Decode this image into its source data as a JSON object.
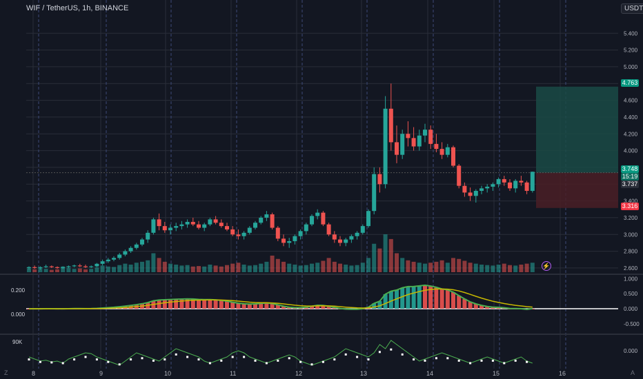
{
  "header": {
    "symbol_title": "WIF / TetherUS, 1h, BINANCE",
    "unit_button": "USDT"
  },
  "colors": {
    "up": "#26a69a",
    "down": "#ef5350",
    "grid": "#2a2e39",
    "bg": "#131722",
    "tp_zone": "#1a4a45",
    "sl_zone": "#4a1f26",
    "purple": "#b05cf1"
  },
  "price_axis": {
    "ticks": [
      "5.400",
      "5.200",
      "5.000",
      "4.800",
      "4.600",
      "4.400",
      "4.200",
      "4.000",
      "3.800",
      "3.600",
      "3.400",
      "3.200",
      "3.000",
      "2.800",
      "2.600"
    ]
  },
  "price_badges": {
    "target": "4.763",
    "current": "3.748",
    "countdown": "15:19",
    "entry": "3.737",
    "stop": "3.316"
  },
  "osc_axis": {
    "ticks": [
      "1.000",
      "0.500",
      "0.000",
      "-0.500"
    ],
    "left_labels": [
      "0.200",
      "0.000"
    ]
  },
  "vol_axis": {
    "ticks": [
      "0.000"
    ],
    "left_label": "90K"
  },
  "time_axis": {
    "labels": [
      "8",
      "9",
      "10",
      "11",
      "12",
      "13",
      "14",
      "15",
      "16"
    ]
  },
  "corner_labels": {
    "left": "Z",
    "right": "A"
  },
  "chart_data": {
    "type": "candlestick",
    "price_range": [
      2.55,
      5.55
    ],
    "ohlc": [
      [
        2.6,
        2.62,
        2.58,
        2.61
      ],
      [
        2.61,
        2.63,
        2.59,
        2.6
      ],
      [
        2.6,
        2.62,
        2.58,
        2.61
      ],
      [
        2.61,
        2.64,
        2.6,
        2.62
      ],
      [
        2.62,
        2.63,
        2.6,
        2.61
      ],
      [
        2.61,
        2.62,
        2.59,
        2.6
      ],
      [
        2.6,
        2.62,
        2.59,
        2.61
      ],
      [
        2.61,
        2.63,
        2.6,
        2.62
      ],
      [
        2.62,
        2.64,
        2.61,
        2.63
      ],
      [
        2.63,
        2.65,
        2.61,
        2.62
      ],
      [
        2.62,
        2.64,
        2.6,
        2.61
      ],
      [
        2.61,
        2.63,
        2.6,
        2.62
      ],
      [
        2.62,
        2.66,
        2.61,
        2.65
      ],
      [
        2.65,
        2.7,
        2.63,
        2.68
      ],
      [
        2.68,
        2.72,
        2.66,
        2.7
      ],
      [
        2.7,
        2.74,
        2.68,
        2.72
      ],
      [
        2.72,
        2.78,
        2.7,
        2.76
      ],
      [
        2.76,
        2.82,
        2.74,
        2.8
      ],
      [
        2.8,
        2.86,
        2.78,
        2.84
      ],
      [
        2.84,
        2.9,
        2.82,
        2.88
      ],
      [
        2.88,
        2.96,
        2.86,
        2.94
      ],
      [
        2.94,
        3.05,
        2.9,
        3.02
      ],
      [
        3.02,
        3.2,
        3.0,
        3.18
      ],
      [
        3.18,
        3.25,
        3.05,
        3.1
      ],
      [
        3.1,
        3.15,
        3.02,
        3.05
      ],
      [
        3.05,
        3.12,
        3.0,
        3.08
      ],
      [
        3.08,
        3.14,
        3.04,
        3.1
      ],
      [
        3.1,
        3.16,
        3.06,
        3.12
      ],
      [
        3.12,
        3.18,
        3.08,
        3.15
      ],
      [
        3.15,
        3.2,
        3.1,
        3.12
      ],
      [
        3.12,
        3.16,
        3.06,
        3.08
      ],
      [
        3.08,
        3.14,
        3.04,
        3.12
      ],
      [
        3.12,
        3.2,
        3.1,
        3.18
      ],
      [
        3.18,
        3.22,
        3.12,
        3.14
      ],
      [
        3.14,
        3.18,
        3.08,
        3.1
      ],
      [
        3.1,
        3.14,
        3.04,
        3.06
      ],
      [
        3.06,
        3.1,
        2.98,
        3.0
      ],
      [
        3.0,
        3.06,
        2.94,
        2.98
      ],
      [
        2.98,
        3.04,
        2.94,
        3.02
      ],
      [
        3.02,
        3.1,
        3.0,
        3.08
      ],
      [
        3.08,
        3.16,
        3.06,
        3.14
      ],
      [
        3.14,
        3.22,
        3.12,
        3.2
      ],
      [
        3.2,
        3.28,
        3.16,
        3.24
      ],
      [
        3.24,
        3.26,
        3.06,
        3.08
      ],
      [
        3.08,
        3.1,
        2.92,
        2.95
      ],
      [
        2.95,
        3.0,
        2.86,
        2.9
      ],
      [
        2.9,
        2.96,
        2.84,
        2.92
      ],
      [
        2.92,
        3.0,
        2.88,
        2.98
      ],
      [
        2.98,
        3.06,
        2.94,
        3.04
      ],
      [
        3.04,
        3.14,
        3.0,
        3.12
      ],
      [
        3.12,
        3.24,
        3.1,
        3.22
      ],
      [
        3.22,
        3.3,
        3.18,
        3.26
      ],
      [
        3.26,
        3.28,
        3.1,
        3.12
      ],
      [
        3.12,
        3.14,
        2.98,
        3.0
      ],
      [
        3.0,
        3.04,
        2.9,
        2.94
      ],
      [
        2.94,
        2.98,
        2.86,
        2.9
      ],
      [
        2.9,
        2.96,
        2.86,
        2.94
      ],
      [
        2.94,
        3.0,
        2.9,
        2.98
      ],
      [
        2.98,
        3.04,
        2.94,
        3.02
      ],
      [
        3.02,
        3.12,
        3.0,
        3.1
      ],
      [
        3.1,
        3.3,
        3.08,
        3.28
      ],
      [
        3.28,
        3.8,
        3.24,
        3.72
      ],
      [
        3.72,
        3.8,
        3.5,
        3.6
      ],
      [
        3.6,
        4.65,
        3.55,
        4.5
      ],
      [
        4.5,
        4.8,
        4.0,
        4.1
      ],
      [
        4.1,
        4.3,
        3.85,
        3.95
      ],
      [
        3.95,
        4.25,
        3.9,
        4.2
      ],
      [
        4.2,
        4.35,
        4.05,
        4.15
      ],
      [
        4.15,
        4.28,
        4.0,
        4.05
      ],
      [
        4.05,
        4.25,
        4.0,
        4.18
      ],
      [
        4.18,
        4.32,
        4.1,
        4.25
      ],
      [
        4.25,
        4.3,
        4.02,
        4.08
      ],
      [
        4.08,
        4.2,
        3.98,
        4.02
      ],
      [
        4.02,
        4.1,
        3.9,
        3.95
      ],
      [
        3.95,
        4.08,
        3.92,
        4.04
      ],
      [
        4.04,
        4.06,
        3.8,
        3.82
      ],
      [
        3.82,
        3.84,
        3.55,
        3.58
      ],
      [
        3.58,
        3.62,
        3.45,
        3.5
      ],
      [
        3.5,
        3.56,
        3.4,
        3.46
      ],
      [
        3.46,
        3.54,
        3.38,
        3.52
      ],
      [
        3.52,
        3.58,
        3.48,
        3.55
      ],
      [
        3.55,
        3.6,
        3.5,
        3.57
      ],
      [
        3.57,
        3.62,
        3.52,
        3.6
      ],
      [
        3.6,
        3.68,
        3.56,
        3.66
      ],
      [
        3.66,
        3.7,
        3.58,
        3.62
      ],
      [
        3.62,
        3.66,
        3.52,
        3.55
      ],
      [
        3.55,
        3.66,
        3.5,
        3.64
      ],
      [
        3.64,
        3.7,
        3.58,
        3.62
      ],
      [
        3.62,
        3.64,
        3.48,
        3.52
      ],
      [
        3.52,
        3.75,
        3.5,
        3.748
      ]
    ],
    "volume": [
      8,
      6,
      10,
      7,
      5,
      6,
      12,
      9,
      7,
      8,
      6,
      7,
      10,
      14,
      12,
      11,
      15,
      18,
      16,
      20,
      22,
      25,
      40,
      30,
      22,
      18,
      16,
      14,
      15,
      12,
      13,
      12,
      16,
      14,
      12,
      15,
      18,
      20,
      16,
      14,
      15,
      18,
      22,
      35,
      28,
      22,
      18,
      16,
      14,
      15,
      18,
      20,
      24,
      30,
      22,
      18,
      16,
      14,
      15,
      20,
      30,
      60,
      50,
      80,
      70,
      40,
      30,
      25,
      22,
      20,
      18,
      20,
      22,
      25,
      20,
      30,
      28,
      24,
      20,
      18,
      16,
      15,
      14,
      16,
      18,
      15,
      14,
      16,
      18,
      20
    ],
    "trade_zone": {
      "target": 4.763,
      "entry": 3.737,
      "stop": 3.316,
      "start_index": 78
    },
    "oscillator_range": [
      -0.8,
      1.1
    ],
    "volume_line": [
      0.2,
      0.15,
      0.1,
      0.12,
      0.08,
      0.1,
      0.05,
      0.15,
      0.2,
      0.25,
      0.3,
      0.28,
      0.2,
      0.15,
      0.1,
      0.05,
      0.0,
      0.1,
      0.2,
      0.3,
      0.25,
      0.2,
      0.15,
      0.1,
      0.2,
      0.3,
      0.4,
      0.35,
      0.3,
      0.25,
      0.2,
      0.1,
      0.05,
      0.1,
      0.15,
      0.2,
      0.3,
      0.35,
      0.3,
      0.2,
      0.15,
      0.1,
      0.05,
      0.1,
      0.15,
      0.2,
      0.25,
      0.2,
      0.1,
      0.05,
      0.0,
      0.05,
      0.1,
      0.15,
      0.2,
      0.3,
      0.4,
      0.35,
      0.3,
      0.25,
      0.2,
      0.3,
      0.5,
      0.4,
      0.6,
      0.5,
      0.4,
      0.3,
      0.2,
      0.1,
      0.15,
      0.2,
      0.25,
      0.3,
      0.25,
      0.2,
      0.15,
      0.1,
      0.05,
      0.1,
      0.15,
      0.2,
      0.15,
      0.1,
      0.05,
      0.1,
      0.15,
      0.2,
      0.1,
      0.05
    ]
  }
}
